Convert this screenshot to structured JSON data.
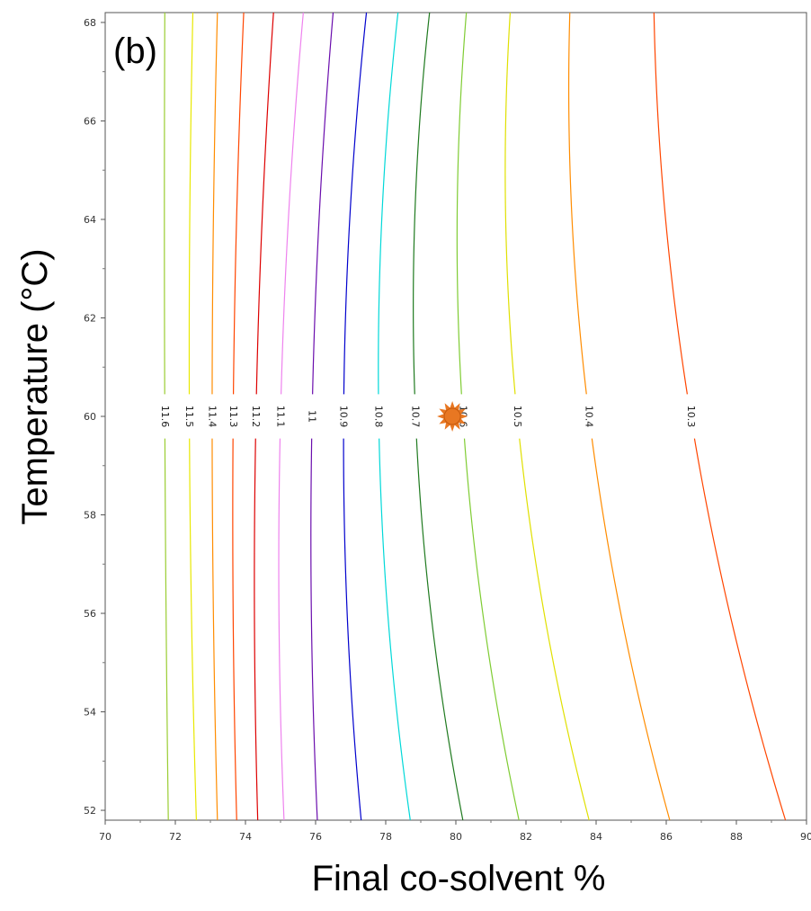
{
  "chart_data": {
    "type": "contour",
    "panel_label": "(b)",
    "xlabel": "Final co-solvent %",
    "ylabel": "Temperature (°C)",
    "xlim": [
      70,
      90
    ],
    "ylim": [
      51.8,
      68.2
    ],
    "x_ticks": [
      "70",
      "72",
      "74",
      "76",
      "78",
      "80",
      "82",
      "84",
      "86",
      "88",
      "90"
    ],
    "y_ticks": [
      "52",
      "54",
      "56",
      "58",
      "60",
      "62",
      "64",
      "66",
      "68"
    ],
    "grid": false,
    "contours": [
      {
        "level": "11.6",
        "color": "#9acd32",
        "x_at_top": 71.7,
        "x_at_60": 71.7,
        "x_at_bottom": 71.8
      },
      {
        "level": "11.5",
        "color": "#e8e800",
        "x_at_top": 72.5,
        "x_at_60": 72.4,
        "x_at_bottom": 72.6
      },
      {
        "level": "11.4",
        "color": "#ff8c00",
        "x_at_top": 73.2,
        "x_at_60": 73.05,
        "x_at_bottom": 73.2
      },
      {
        "level": "11.3",
        "color": "#ff4500",
        "x_at_top": 73.95,
        "x_at_60": 73.65,
        "x_at_bottom": 73.75
      },
      {
        "level": "11.2",
        "color": "#dd0000",
        "x_at_top": 74.8,
        "x_at_60": 74.3,
        "x_at_bottom": 74.35
      },
      {
        "level": "11.1",
        "color": "#ee82ee",
        "x_at_top": 75.65,
        "x_at_60": 75.0,
        "x_at_bottom": 75.1
      },
      {
        "level": "11",
        "color": "#6a0dad",
        "x_at_top": 76.5,
        "x_at_60": 75.9,
        "x_at_bottom": 76.05
      },
      {
        "level": "10.9",
        "color": "#0000cd",
        "x_at_top": 77.45,
        "x_at_60": 76.8,
        "x_at_bottom": 77.3
      },
      {
        "level": "10.8",
        "color": "#00d8d8",
        "x_at_top": 78.35,
        "x_at_60": 77.8,
        "x_at_bottom": 78.7
      },
      {
        "level": "10.7",
        "color": "#1f7a1f",
        "x_at_top": 79.25,
        "x_at_60": 78.85,
        "x_at_bottom": 80.2
      },
      {
        "level": "10.6",
        "color": "#7fcc33",
        "x_at_top": 80.3,
        "x_at_60": 80.2,
        "x_at_bottom": 81.8
      },
      {
        "level": "10.5",
        "color": "#e0e000",
        "x_at_top": 81.55,
        "x_at_60": 81.75,
        "x_at_bottom": 83.8
      },
      {
        "level": "10.4",
        "color": "#ff8c00",
        "x_at_top": 83.25,
        "x_at_60": 83.8,
        "x_at_bottom": 86.1
      },
      {
        "level": "10.3",
        "color": "#ff4500",
        "x_at_top": 85.65,
        "x_at_60": 86.7,
        "x_at_bottom": 89.4
      }
    ],
    "marker": {
      "x": 79.9,
      "y": 60,
      "shape": "sun",
      "color": "#e87722"
    }
  }
}
